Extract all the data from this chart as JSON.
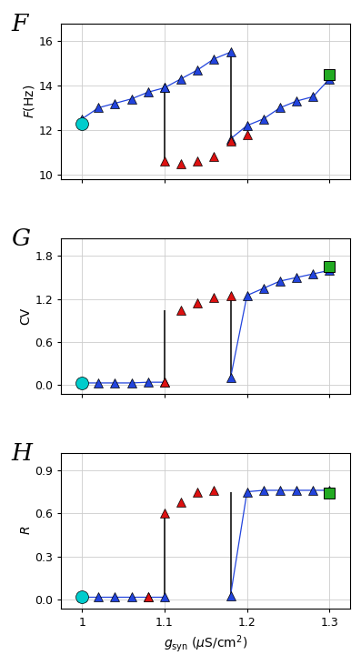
{
  "panel_F": {
    "blue_seg1_x": [
      1.0,
      1.02,
      1.04,
      1.06,
      1.08,
      1.1
    ],
    "blue_seg1_y": [
      12.5,
      13.0,
      13.2,
      13.4,
      13.7,
      13.9
    ],
    "blue_seg2_x": [
      1.18,
      1.2,
      1.22,
      1.24,
      1.26,
      1.28,
      1.3
    ],
    "blue_seg2_y": [
      11.6,
      12.2,
      12.5,
      13.0,
      13.3,
      13.5,
      14.3
    ],
    "blue_upper_x": [
      1.1,
      1.12,
      1.14,
      1.16,
      1.18
    ],
    "blue_upper_y": [
      13.9,
      14.3,
      14.7,
      15.2,
      15.5
    ],
    "red_x": [
      1.1,
      1.12,
      1.14,
      1.16,
      1.18,
      1.2
    ],
    "red_y": [
      10.6,
      10.5,
      10.6,
      10.8,
      11.5,
      11.8
    ],
    "green_x": [
      1.3
    ],
    "green_y": [
      14.5
    ],
    "cyan_x": [
      1.0
    ],
    "cyan_y": [
      12.3
    ],
    "line1_x": [
      1.1,
      1.1
    ],
    "line1_y": [
      13.9,
      10.6
    ],
    "line2_x": [
      1.18,
      1.18
    ],
    "line2_y": [
      15.5,
      11.5
    ],
    "ylim": [
      9.8,
      16.8
    ],
    "yticks": [
      10,
      12,
      14,
      16
    ],
    "ylabel": "$F$(Hz)"
  },
  "panel_G": {
    "blue_seg1_x": [
      1.0,
      1.02,
      1.04,
      1.06,
      1.08,
      1.1
    ],
    "blue_seg1_y": [
      0.03,
      0.03,
      0.03,
      0.03,
      0.04,
      0.04
    ],
    "blue_seg2_x": [
      1.18,
      1.2,
      1.22,
      1.24,
      1.26,
      1.28,
      1.3
    ],
    "blue_seg2_y": [
      0.1,
      1.25,
      1.35,
      1.45,
      1.5,
      1.55,
      1.6
    ],
    "blue_upper_x": [],
    "blue_upper_y": [],
    "red_x": [
      1.1,
      1.12,
      1.14,
      1.16,
      1.18
    ],
    "red_y": [
      0.04,
      1.05,
      1.15,
      1.22,
      1.25
    ],
    "green_x": [
      1.3
    ],
    "green_y": [
      1.65
    ],
    "cyan_x": [
      1.0
    ],
    "cyan_y": [
      0.03
    ],
    "line1_x": [
      1.1,
      1.1
    ],
    "line1_y": [
      0.04,
      1.05
    ],
    "line2_x": [
      1.18,
      1.18
    ],
    "line2_y": [
      1.25,
      0.1
    ],
    "ylim": [
      -0.12,
      2.05
    ],
    "yticks": [
      0.0,
      0.6,
      1.2,
      1.8
    ],
    "ylabel": "CV"
  },
  "panel_H": {
    "blue_seg1_x": [
      1.0,
      1.02,
      1.04,
      1.06,
      1.08,
      1.1
    ],
    "blue_seg1_y": [
      0.02,
      0.02,
      0.02,
      0.02,
      0.02,
      0.02
    ],
    "blue_seg2_x": [
      1.18,
      1.2,
      1.22,
      1.24,
      1.26,
      1.28,
      1.3
    ],
    "blue_seg2_y": [
      0.03,
      0.75,
      0.76,
      0.76,
      0.76,
      0.76,
      0.76
    ],
    "blue_upper_x": [],
    "blue_upper_y": [],
    "red_x": [
      1.08,
      1.1,
      1.12,
      1.14,
      1.16
    ],
    "red_y": [
      0.02,
      0.6,
      0.68,
      0.75,
      0.76
    ],
    "green_x": [
      1.3
    ],
    "green_y": [
      0.74
    ],
    "cyan_x": [
      1.0
    ],
    "cyan_y": [
      0.02
    ],
    "line1_x": [
      1.1,
      1.1
    ],
    "line1_y": [
      0.02,
      0.6
    ],
    "line2_x": [
      1.18,
      1.18
    ],
    "line2_y": [
      0.75,
      0.03
    ],
    "ylim": [
      -0.06,
      1.02
    ],
    "yticks": [
      0.0,
      0.3,
      0.6,
      0.9
    ],
    "ylabel": "$R$"
  },
  "xlim": [
    0.975,
    1.325
  ],
  "xticks": [
    1.0,
    1.1,
    1.2,
    1.3
  ],
  "xticklabels": [
    "1",
    "1.1",
    "1.2",
    "1.3"
  ],
  "xlabel": "$g_\\mathrm{syn}$ ($\\mu$S/cm$^2$)",
  "blue_color": "#2244dd",
  "red_color": "#dd1111",
  "green_color": "#22aa22",
  "cyan_color": "#00cccc",
  "marker_size": 7,
  "panel_labels": [
    "F",
    "G",
    "H"
  ]
}
